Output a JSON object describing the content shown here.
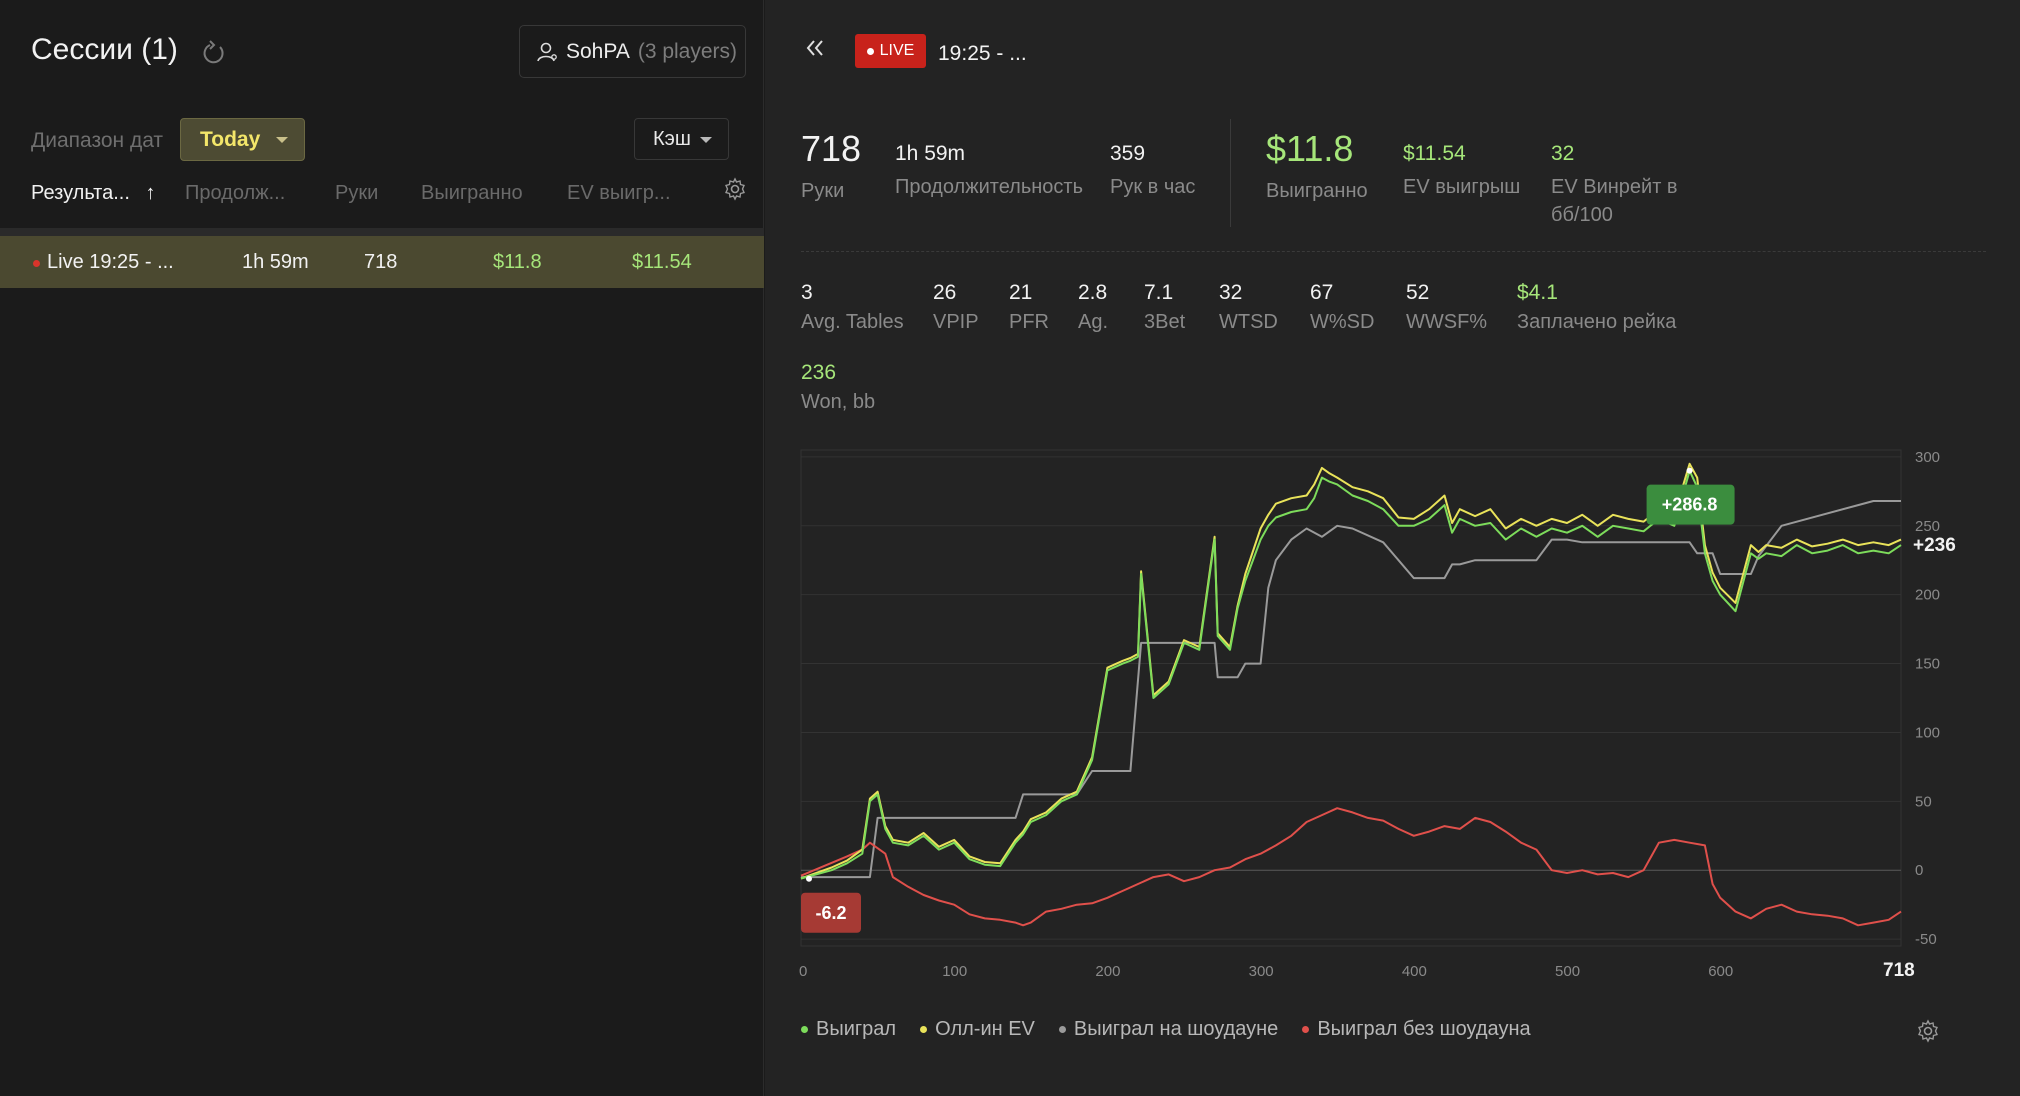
{
  "left": {
    "title": "Сессии (1)",
    "player_name": "SohPA",
    "player_count": "(3 players)",
    "range_label": "Диапазон дат",
    "range_value": "Today",
    "game_type": "Кэш",
    "columns": [
      "Результа...",
      "Продолж...",
      "Руки",
      "Выигранно",
      "EV выигр..."
    ],
    "sort_arrow": "↑",
    "session_row": {
      "name": "Live 19:25 - ...",
      "duration": "1h 59m",
      "hands": "718",
      "won": "$11.8",
      "ev_won": "$11.54"
    }
  },
  "right": {
    "live_label": "LIVE",
    "live_time": "19:25 - ...",
    "summary": {
      "hands_value": "718",
      "hands_label": "Руки",
      "duration_value": "1h 59m",
      "duration_label": "Продолжительность",
      "hph_value": "359",
      "hph_label": "Рук в час",
      "won_value": "$11.8",
      "won_label": "Выигранно",
      "ev_value": "$11.54",
      "ev_label": "EV выигрыш",
      "evbb_value": "32",
      "evbb_label": "EV Винрейт в бб/100"
    },
    "stats": [
      {
        "value": "3",
        "label": "Avg. Tables"
      },
      {
        "value": "26",
        "label": "VPIP"
      },
      {
        "value": "21",
        "label": "PFR"
      },
      {
        "value": "2.8",
        "label": "Ag."
      },
      {
        "value": "7.1",
        "label": "3Bet"
      },
      {
        "value": "32",
        "label": "WTSD"
      },
      {
        "value": "67",
        "label": "W%SD"
      },
      {
        "value": "52",
        "label": "WWSF%"
      },
      {
        "value": "$4.1",
        "label": "Заплачено рейка"
      }
    ],
    "won_bb_value": "236",
    "won_bb_label": "Won, bb",
    "legend": [
      {
        "label": "Выиграл",
        "color": "#7ddc5b"
      },
      {
        "label": "Олл-ин EV",
        "color": "#e9e35a"
      },
      {
        "label": "Выиграл на шоудауне",
        "color": "#9a9a9a"
      },
      {
        "label": "Выиграл без шоудауна",
        "color": "#e0504b"
      }
    ]
  },
  "colors": {
    "accent_green": "#a6e67a",
    "live_red": "#c8221b",
    "selected_row": "#4b4930"
  },
  "chart_data": {
    "type": "line",
    "xlim": [
      0,
      718
    ],
    "ylim": [
      -50,
      300
    ],
    "x_ticks": [
      0,
      100,
      200,
      300,
      400,
      500,
      600,
      718
    ],
    "y_ticks": [
      300,
      250,
      200,
      150,
      100,
      50,
      0,
      -50
    ],
    "max_label": "+286.8",
    "min_label": "-6.2",
    "end_label": "+236",
    "series": [
      {
        "name": "Выиграл",
        "color": "#7ddc5b",
        "x": [
          0,
          20,
          30,
          40,
          45,
          50,
          55,
          60,
          70,
          80,
          90,
          100,
          110,
          120,
          130,
          140,
          145,
          150,
          160,
          170,
          180,
          190,
          200,
          210,
          215,
          220,
          222,
          230,
          240,
          250,
          260,
          270,
          272,
          280,
          285,
          290,
          300,
          305,
          310,
          320,
          330,
          335,
          340,
          345,
          350,
          360,
          370,
          380,
          390,
          400,
          410,
          420,
          425,
          430,
          440,
          450,
          460,
          470,
          480,
          490,
          500,
          510,
          520,
          530,
          540,
          550,
          560,
          570,
          580,
          585,
          590,
          595,
          600,
          610,
          620,
          625,
          630,
          640,
          650,
          660,
          670,
          680,
          690,
          700,
          710,
          718
        ],
        "y": [
          -6,
          0,
          5,
          12,
          50,
          55,
          30,
          20,
          18,
          25,
          15,
          20,
          8,
          4,
          3,
          20,
          26,
          35,
          40,
          50,
          55,
          80,
          145,
          150,
          152,
          155,
          215,
          125,
          135,
          165,
          160,
          240,
          170,
          160,
          190,
          210,
          240,
          250,
          256,
          260,
          262,
          270,
          285,
          282,
          280,
          272,
          268,
          262,
          250,
          250,
          255,
          265,
          245,
          255,
          250,
          252,
          240,
          248,
          242,
          248,
          245,
          250,
          242,
          250,
          248,
          246,
          255,
          250,
          290,
          278,
          230,
          210,
          200,
          188,
          230,
          226,
          230,
          228,
          236,
          230,
          232,
          236,
          230,
          232,
          230,
          236
        ]
      },
      {
        "name": "Олл-ин EV",
        "color": "#e9e35a",
        "x": [
          0,
          20,
          30,
          40,
          45,
          50,
          55,
          60,
          70,
          80,
          90,
          100,
          110,
          120,
          130,
          140,
          145,
          150,
          160,
          170,
          180,
          190,
          200,
          210,
          215,
          220,
          222,
          230,
          240,
          250,
          260,
          270,
          272,
          280,
          285,
          290,
          300,
          305,
          310,
          320,
          330,
          335,
          340,
          345,
          350,
          360,
          370,
          380,
          390,
          400,
          410,
          420,
          425,
          430,
          440,
          450,
          460,
          470,
          480,
          490,
          500,
          510,
          520,
          530,
          540,
          550,
          560,
          570,
          580,
          585,
          590,
          595,
          600,
          610,
          620,
          625,
          630,
          640,
          650,
          660,
          670,
          680,
          690,
          700,
          710,
          718
        ],
        "y": [
          -6,
          2,
          7,
          15,
          52,
          57,
          32,
          22,
          20,
          27,
          17,
          22,
          10,
          6,
          5,
          22,
          28,
          37,
          42,
          52,
          57,
          82,
          147,
          152,
          154,
          157,
          217,
          127,
          137,
          167,
          162,
          242,
          172,
          162,
          192,
          215,
          248,
          258,
          266,
          270,
          272,
          280,
          292,
          288,
          285,
          278,
          275,
          270,
          256,
          255,
          262,
          272,
          252,
          262,
          257,
          262,
          248,
          255,
          250,
          255,
          252,
          258,
          250,
          258,
          255,
          253,
          262,
          258,
          295,
          285,
          236,
          216,
          205,
          194,
          236,
          231,
          236,
          234,
          240,
          235,
          237,
          240,
          236,
          238,
          236,
          240
        ]
      },
      {
        "name": "Выиграл на шоудауне",
        "color": "#9a9a9a",
        "x": [
          0,
          45,
          50,
          100,
          140,
          145,
          180,
          190,
          215,
          222,
          270,
          272,
          285,
          290,
          300,
          305,
          310,
          320,
          330,
          340,
          350,
          360,
          380,
          400,
          420,
          425,
          430,
          440,
          480,
          490,
          500,
          510,
          520,
          580,
          585,
          595,
          600,
          620,
          625,
          640,
          690,
          700,
          718
        ],
        "y": [
          -5,
          -5,
          38,
          38,
          38,
          55,
          55,
          72,
          72,
          165,
          165,
          140,
          140,
          150,
          150,
          205,
          225,
          240,
          248,
          242,
          250,
          248,
          238,
          212,
          212,
          222,
          222,
          225,
          225,
          240,
          240,
          238,
          238,
          238,
          230,
          230,
          215,
          215,
          228,
          250,
          265,
          268,
          268
        ]
      },
      {
        "name": "Выиграл без шоудауна",
        "color": "#e0504b",
        "x": [
          0,
          15,
          30,
          40,
          45,
          55,
          60,
          70,
          80,
          90,
          100,
          110,
          120,
          130,
          140,
          145,
          150,
          160,
          170,
          180,
          190,
          200,
          210,
          220,
          230,
          240,
          250,
          260,
          270,
          280,
          290,
          300,
          310,
          320,
          330,
          340,
          350,
          360,
          370,
          380,
          390,
          400,
          410,
          420,
          430,
          440,
          450,
          460,
          470,
          480,
          490,
          500,
          510,
          520,
          530,
          540,
          550,
          560,
          570,
          580,
          590,
          595,
          600,
          610,
          620,
          630,
          640,
          650,
          660,
          670,
          680,
          690,
          700,
          710,
          718
        ],
        "y": [
          -4,
          3,
          10,
          15,
          20,
          12,
          -5,
          -12,
          -18,
          -22,
          -25,
          -32,
          -35,
          -36,
          -38,
          -40,
          -38,
          -30,
          -28,
          -25,
          -24,
          -20,
          -15,
          -10,
          -5,
          -3,
          -8,
          -5,
          0,
          2,
          8,
          12,
          18,
          25,
          35,
          40,
          45,
          42,
          38,
          36,
          30,
          25,
          28,
          32,
          30,
          38,
          35,
          28,
          20,
          15,
          0,
          -2,
          0,
          -3,
          -2,
          -5,
          0,
          20,
          22,
          20,
          18,
          -10,
          -20,
          -30,
          -35,
          -28,
          -25,
          -30,
          -32,
          -33,
          -35,
          -40,
          -38,
          -36,
          -30
        ]
      }
    ]
  }
}
